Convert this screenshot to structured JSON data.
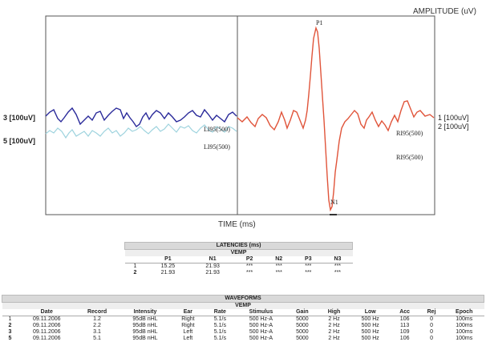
{
  "chart_data": {
    "type": "line",
    "ylabel": "AMPLITUDE (uV)",
    "xlabel": "TIME (ms)",
    "left_channels": [
      "3 [100uV]",
      "5 [100uV]"
    ],
    "right_channels": [
      "1 [100uV]",
      "2 [100uV]"
    ],
    "series": [
      {
        "name": "3",
        "color": "#2a2a9a",
        "side": "left"
      },
      {
        "name": "5",
        "color": "#9ed3de",
        "side": "left"
      },
      {
        "name": "1",
        "color": "#e0543a",
        "side": "right"
      }
    ],
    "peak_labels": [
      "P1",
      "N1"
    ],
    "trace_labels": [
      "LI95(500)",
      "LI95(500)",
      "RI95(500)",
      "RI95(500)"
    ]
  },
  "latencies": {
    "title": "LATENCIES (ms)",
    "subtitle": "VEMP",
    "columns": [
      "",
      "P1",
      "N1",
      "P2",
      "N2",
      "P3",
      "N3"
    ],
    "rows": [
      [
        "1",
        "15.25",
        "21.93",
        "***",
        "***",
        "***",
        "***"
      ],
      [
        "2",
        "21.93",
        "21.93",
        "***",
        "***",
        "***",
        "***"
      ]
    ]
  },
  "waveforms": {
    "title": "WAVEFORMS",
    "subtitle": "VEMP",
    "columns": [
      "",
      "Date",
      "Record",
      "Intensity",
      "Ear",
      "Rate",
      "Stimulus",
      "Gain",
      "High",
      "Low",
      "Acc",
      "Rej",
      "Epoch"
    ],
    "rows": [
      [
        "1",
        "09.11.2006",
        "1.2",
        "95dB nHL",
        "Right",
        "5.1/s",
        "500 Hz-A",
        "5000",
        "2 Hz",
        "500 Hz",
        "106",
        "0",
        "100ms"
      ],
      [
        "2",
        "09.11.2006",
        "2.2",
        "95dB nHL",
        "Right",
        "5.1/s",
        "500 Hz-A",
        "5000",
        "2 Hz",
        "500 Hz",
        "113",
        "0",
        "100ms"
      ],
      [
        "3",
        "09.11.2006",
        "3.1",
        "95dB nHL",
        "Left",
        "5.1/s",
        "500 Hz-A",
        "5000",
        "2 Hz",
        "500 Hz",
        "109",
        "0",
        "100ms"
      ],
      [
        "5",
        "09.11.2006",
        "5.1",
        "95dB nHL",
        "Left",
        "5.1/s",
        "500 Hz-A",
        "5000",
        "2 Hz",
        "500 Hz",
        "106",
        "0",
        "100ms"
      ]
    ]
  }
}
